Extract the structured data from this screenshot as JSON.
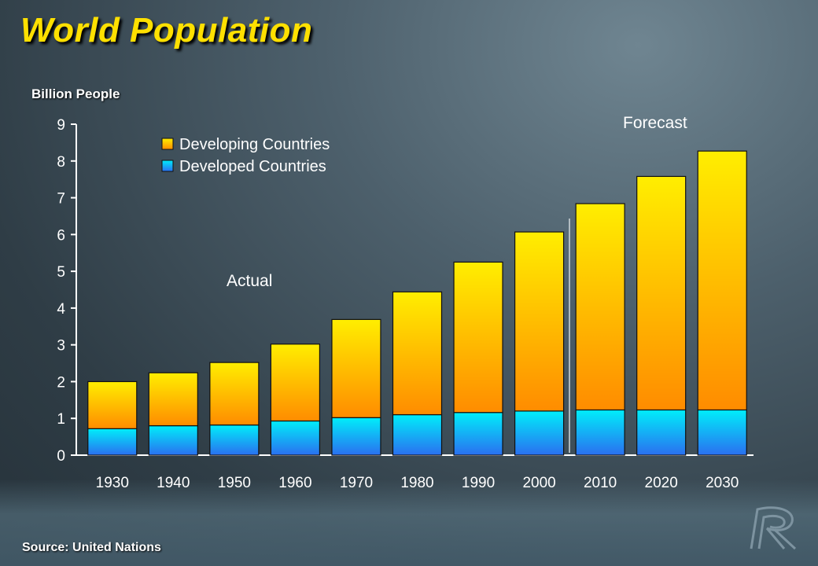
{
  "title": "World Population",
  "source": "Source: United Nations",
  "chart_data": {
    "type": "bar",
    "stacked": true,
    "ylabel": "Billion People",
    "xlabel": "",
    "ylim": [
      0,
      9
    ],
    "yticks": [
      0,
      1,
      2,
      3,
      4,
      5,
      6,
      7,
      8,
      9
    ],
    "categories": [
      "1930",
      "1940",
      "1950",
      "1960",
      "1970",
      "1980",
      "1990",
      "2000",
      "2010",
      "2020",
      "2030"
    ],
    "series": [
      {
        "name": "Developed Countries",
        "color": "#1fb8f0",
        "values": [
          0.72,
          0.8,
          0.82,
          0.93,
          1.02,
          1.1,
          1.16,
          1.2,
          1.23,
          1.23,
          1.23
        ]
      },
      {
        "name": "Developing Countries",
        "color": "#ffb400",
        "values": [
          1.28,
          1.44,
          1.7,
          2.09,
          2.67,
          3.34,
          4.09,
          4.87,
          5.61,
          6.35,
          7.04
        ]
      }
    ],
    "legend_order": [
      "Developing Countries",
      "Developed Countries"
    ],
    "legend_position": "top-left",
    "grid": false,
    "annotations": [
      "Actual",
      "Forecast"
    ]
  }
}
